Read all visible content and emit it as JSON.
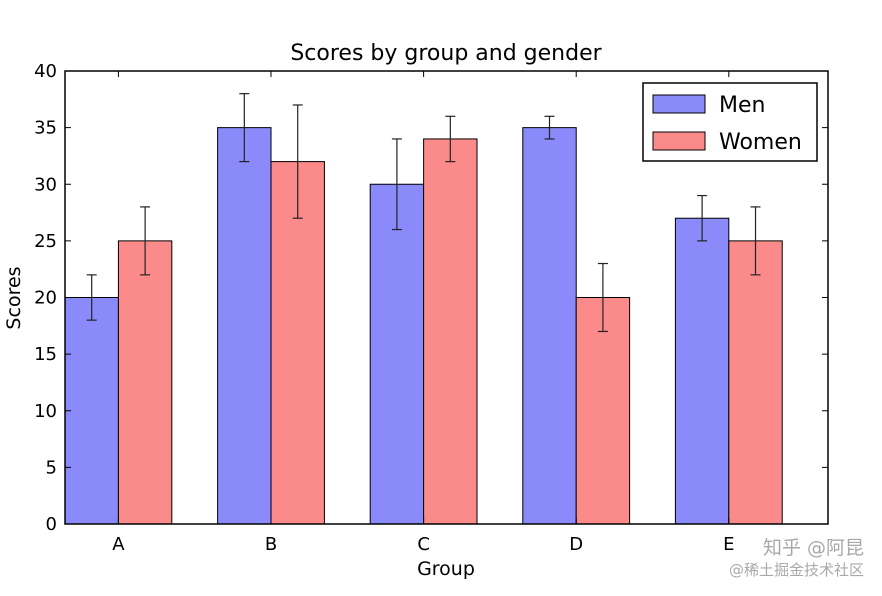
{
  "chart_data": {
    "type": "bar",
    "title": "Scores by group and gender",
    "xlabel": "Group",
    "ylabel": "Scores",
    "categories": [
      "A",
      "B",
      "C",
      "D",
      "E"
    ],
    "ylim": [
      0,
      40
    ],
    "yticks": [
      "0",
      "5",
      "10",
      "15",
      "20",
      "25",
      "30",
      "35",
      "40"
    ],
    "grid": false,
    "legend_position": "top-right",
    "series": [
      {
        "name": "Men",
        "color": "#8a8afb",
        "values": [
          20,
          35,
          30,
          35,
          27
        ],
        "errors": [
          2,
          3,
          4,
          1,
          2
        ]
      },
      {
        "name": "Women",
        "color": "#fb8a8a",
        "values": [
          25,
          32,
          34,
          20,
          25
        ],
        "errors": [
          3,
          5,
          2,
          3,
          3
        ]
      }
    ]
  },
  "watermark": {
    "line1": "知乎 @阿昆",
    "line2": "@稀土掘金技术社区"
  }
}
